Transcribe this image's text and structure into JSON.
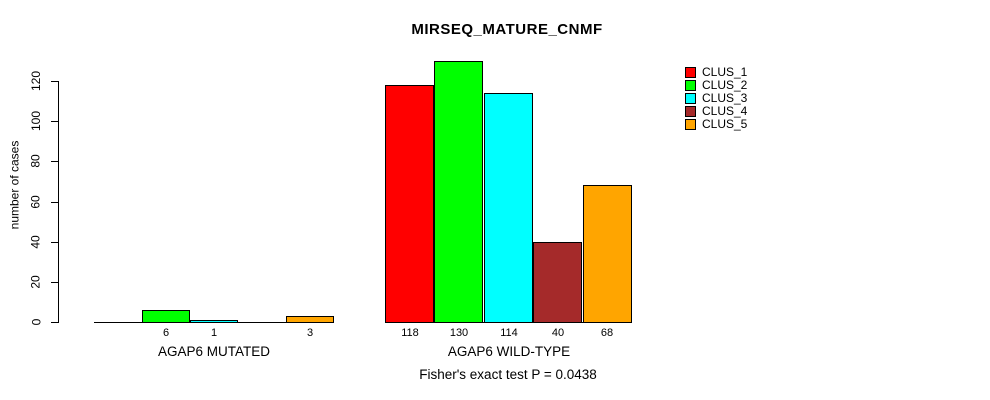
{
  "chart_data": {
    "type": "bar",
    "title": "MIRSEQ_MATURE_CNMF",
    "ylabel": "number of cases",
    "ylim": [
      0,
      130
    ],
    "yticks": [
      0,
      20,
      40,
      60,
      80,
      100,
      120
    ],
    "grid": false,
    "legend_position": "top-right",
    "series_names": [
      "CLUS_1",
      "CLUS_2",
      "CLUS_3",
      "CLUS_4",
      "CLUS_5"
    ],
    "series_colors": [
      "#ff0000",
      "#00ff00",
      "#00ffff",
      "#a52a2a",
      "#ffa500"
    ],
    "groups": [
      {
        "label": "AGAP6 MUTATED",
        "values": [
          0,
          6,
          1,
          0,
          3
        ]
      },
      {
        "label": "AGAP6 WILD-TYPE",
        "values": [
          118,
          130,
          114,
          40,
          68
        ]
      }
    ],
    "annotation": "Fisher's exact test P = 0.0438"
  }
}
